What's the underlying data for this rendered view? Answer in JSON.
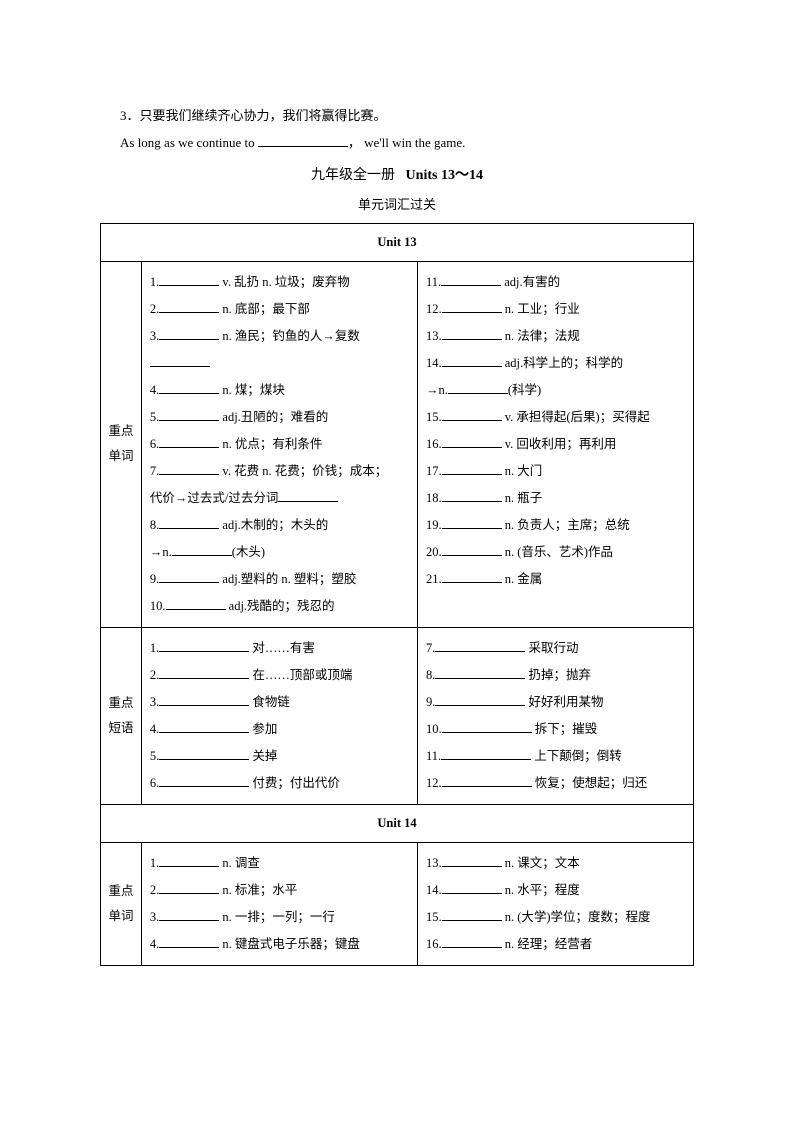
{
  "intro": {
    "q3": "3．只要我们继续齐心协力，我们将赢得比赛。",
    "q3_en_before": "As long as we continue to ",
    "q3_en_after": "， we'll win the game.",
    "main_title_left": "九年级全一册",
    "main_title_right": "Units 13～14",
    "subtitle": "单元词汇过关"
  },
  "labels": {
    "unit13": "Unit 13",
    "unit14": "Unit 14",
    "keywords_a": "重点",
    "keywords_b": "单词",
    "phrases_a": "重点",
    "phrases_b": "短语"
  },
  "u13_words_left": {
    "i1": "v. 乱扔  n. 垃圾；废弃物",
    "i2": "n. 底部；最下部",
    "i3": "n. 渔民；钓鱼的人→复数",
    "i4": "n. 煤；煤块",
    "i5": "adj.丑陋的；难看的",
    "i6": "n. 优点；有利条件",
    "i7": "v. 花费  n. 花费；价钱；成本；",
    "i7b": "代价→过去式/过去分词",
    "i8": "adj.木制的；木头的",
    "i8b_label": "→n.",
    "i8b_tail": "(木头)",
    "i9": "adj.塑料的  n. 塑料；塑胶",
    "i10": "adj.残酷的；残忍的"
  },
  "u13_words_right": {
    "i11": "adj.有害的",
    "i12": "n. 工业；行业",
    "i13": "n. 法律；法规",
    "i14": "adj.科学上的；科学的",
    "i14b_label": "→n.",
    "i14b_tail": "(科学)",
    "i15": "v. 承担得起(后果)；买得起",
    "i16": "v. 回收利用；再利用",
    "i17": "n. 大门",
    "i18": "n. 瓶子",
    "i19": "n. 负责人；主席；总统",
    "i20": "n. (音乐、艺术)作品",
    "i21": "n. 金属"
  },
  "u13_phrases_left": {
    "p1": "对……有害",
    "p2": "在……顶部或顶端",
    "p3": "食物链",
    "p4": "参加",
    "p5": "关掉",
    "p6": "付费；付出代价"
  },
  "u13_phrases_right": {
    "p7": "采取行动",
    "p8": "扔掉；抛弃",
    "p9": "好好利用某物",
    "p10": "拆下；摧毁",
    "p11": "上下颠倒；倒转",
    "p12": "恢复；使想起；归还"
  },
  "u14_words_left": {
    "i1": "n. 调查",
    "i2": "n. 标准；水平",
    "i3": "n. 一排；一列；一行",
    "i4": "n. 键盘式电子乐器；键盘"
  },
  "u14_words_right": {
    "i13": "n. 课文；文本",
    "i14": "n. 水平；程度",
    "i15": "n. (大学)学位；度数；程度",
    "i16": "n. 经理；经营者"
  }
}
